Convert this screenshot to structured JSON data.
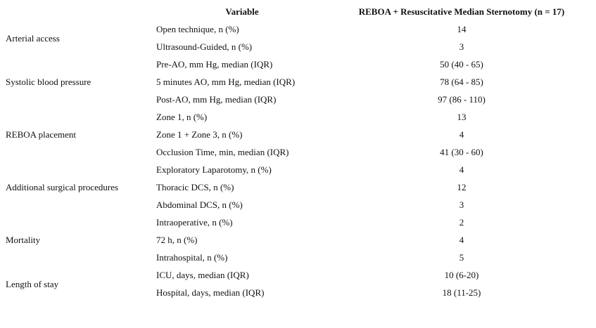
{
  "table": {
    "header": {
      "variable": "Variable",
      "outcome": "REBOA + Resuscitative Median Sternotomy (n = 17)"
    },
    "groups": [
      {
        "label": "Arterial access",
        "rows": [
          {
            "variable": "Open technique, n (%)",
            "value": "14"
          },
          {
            "variable": "Ultrasound-Guided, n (%)",
            "value": "3"
          }
        ]
      },
      {
        "label": "Systolic blood pressure",
        "rows": [
          {
            "variable": "Pre-AO, mm Hg, median (IQR)",
            "value": "50 (40 - 65)"
          },
          {
            "variable": "5 minutes AO, mm Hg, median (IQR)",
            "value": "78 (64 - 85)"
          },
          {
            "variable": "Post-AO, mm Hg, median (IQR)",
            "value": "97 (86 - 110)"
          }
        ]
      },
      {
        "label": "REBOA placement",
        "rows": [
          {
            "variable": "Zone 1, n (%)",
            "value": "13"
          },
          {
            "variable": "Zone 1 + Zone 3, n (%)",
            "value": "4"
          },
          {
            "variable": "Occlusion Time, min, median (IQR)",
            "value": "41 (30 - 60)"
          }
        ]
      },
      {
        "label": "Additional surgical procedures",
        "rows": [
          {
            "variable": "Exploratory Laparotomy, n (%)",
            "value": "4"
          },
          {
            "variable": "Thoracic DCS, n (%)",
            "value": "12"
          },
          {
            "variable": "Abdominal DCS, n (%)",
            "value": "3"
          }
        ]
      },
      {
        "label": "Mortality",
        "rows": [
          {
            "variable": "Intraoperative, n (%)",
            "value": "2"
          },
          {
            "variable": "72 h, n (%)",
            "value": "4"
          },
          {
            "variable": "Intrahospital, n (%)",
            "value": "5"
          }
        ]
      },
      {
        "label": "Length of stay",
        "rows": [
          {
            "variable": "ICU, days, median (IQR)",
            "value": "10 (6-20)"
          },
          {
            "variable": "Hospital, days, median (IQR)",
            "value": "18 (11-25)"
          }
        ]
      }
    ]
  }
}
